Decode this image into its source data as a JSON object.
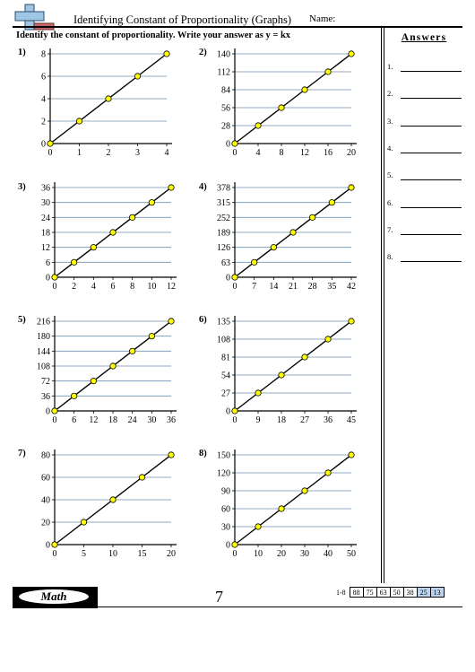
{
  "header": {
    "title": "Identifying Constant of Proportionality (Graphs)",
    "name_label": "Name:",
    "logo_icon": "plus-minus-logo-icon"
  },
  "instructions": "Identify the constant of proportionality. Write your answer as y = kx",
  "answers": {
    "title": "Answers",
    "items": [
      "1.",
      "2.",
      "3.",
      "4.",
      "5.",
      "6.",
      "7.",
      "8."
    ]
  },
  "problems": [
    {
      "label": "1)",
      "x_ticks": [
        "0",
        "1",
        "2",
        "3",
        "4"
      ],
      "y_ticks": [
        "0",
        "2",
        "4",
        "6",
        "8"
      ]
    },
    {
      "label": "2)",
      "x_ticks": [
        "0",
        "4",
        "8",
        "12",
        "16",
        "20"
      ],
      "y_ticks": [
        "0",
        "28",
        "56",
        "84",
        "112",
        "140"
      ]
    },
    {
      "label": "3)",
      "x_ticks": [
        "0",
        "2",
        "4",
        "6",
        "8",
        "10",
        "12"
      ],
      "y_ticks": [
        "0",
        "6",
        "12",
        "18",
        "24",
        "30",
        "36"
      ]
    },
    {
      "label": "4)",
      "x_ticks": [
        "0",
        "7",
        "14",
        "21",
        "28",
        "35",
        "42"
      ],
      "y_ticks": [
        "0",
        "63",
        "126",
        "189",
        "252",
        "315",
        "378"
      ]
    },
    {
      "label": "5)",
      "x_ticks": [
        "0",
        "6",
        "12",
        "18",
        "24",
        "30",
        "36"
      ],
      "y_ticks": [
        "0",
        "36",
        "72",
        "108",
        "144",
        "180",
        "216"
      ]
    },
    {
      "label": "6)",
      "x_ticks": [
        "0",
        "9",
        "18",
        "27",
        "36",
        "45"
      ],
      "y_ticks": [
        "0",
        "27",
        "54",
        "81",
        "108",
        "135"
      ]
    },
    {
      "label": "7)",
      "x_ticks": [
        "0",
        "5",
        "10",
        "15",
        "20"
      ],
      "y_ticks": [
        "0",
        "20",
        "40",
        "60",
        "80"
      ]
    },
    {
      "label": "8)",
      "x_ticks": [
        "0",
        "10",
        "20",
        "30",
        "40",
        "50"
      ],
      "y_ticks": [
        "0",
        "30",
        "60",
        "90",
        "120",
        "150"
      ]
    }
  ],
  "chart_data": [
    {
      "type": "line",
      "x": [
        0,
        1,
        2,
        3,
        4
      ],
      "y": [
        0,
        2,
        4,
        6,
        8
      ],
      "xlim": [
        0,
        4
      ],
      "ylim": [
        0,
        8
      ],
      "grid": true
    },
    {
      "type": "line",
      "x": [
        0,
        4,
        8,
        12,
        16,
        20
      ],
      "y": [
        0,
        28,
        56,
        84,
        112,
        140
      ],
      "xlim": [
        0,
        20
      ],
      "ylim": [
        0,
        140
      ],
      "grid": true
    },
    {
      "type": "line",
      "x": [
        0,
        2,
        4,
        6,
        8,
        10,
        12
      ],
      "y": [
        0,
        6,
        12,
        18,
        24,
        30,
        36
      ],
      "xlim": [
        0,
        12
      ],
      "ylim": [
        0,
        36
      ],
      "grid": true
    },
    {
      "type": "line",
      "x": [
        0,
        7,
        14,
        21,
        28,
        35,
        42
      ],
      "y": [
        0,
        63,
        126,
        189,
        252,
        315,
        378
      ],
      "xlim": [
        0,
        42
      ],
      "ylim": [
        0,
        378
      ],
      "grid": true
    },
    {
      "type": "line",
      "x": [
        0,
        6,
        12,
        18,
        24,
        30,
        36
      ],
      "y": [
        0,
        36,
        72,
        108,
        144,
        180,
        216
      ],
      "xlim": [
        0,
        36
      ],
      "ylim": [
        0,
        216
      ],
      "grid": true
    },
    {
      "type": "line",
      "x": [
        0,
        9,
        18,
        27,
        36,
        45
      ],
      "y": [
        0,
        27,
        54,
        81,
        108,
        135
      ],
      "xlim": [
        0,
        45
      ],
      "ylim": [
        0,
        135
      ],
      "grid": true
    },
    {
      "type": "line",
      "x": [
        0,
        5,
        10,
        15,
        20
      ],
      "y": [
        0,
        20,
        40,
        60,
        80
      ],
      "xlim": [
        0,
        20
      ],
      "ylim": [
        0,
        80
      ],
      "grid": true
    },
    {
      "type": "line",
      "x": [
        0,
        10,
        20,
        30,
        40,
        50
      ],
      "y": [
        0,
        30,
        60,
        90,
        120,
        150
      ],
      "xlim": [
        0,
        50
      ],
      "ylim": [
        0,
        150
      ],
      "grid": true
    }
  ],
  "colors": {
    "gridline": "#6f93b3",
    "point_fill": "#ffff00",
    "axis": "#000000",
    "score_highlight": "#bcd3ef"
  },
  "footer": {
    "badge": "Math",
    "page_number": "7",
    "score_range": "1-8",
    "scores": [
      "88",
      "75",
      "63",
      "50",
      "38",
      "25",
      "13"
    ]
  }
}
